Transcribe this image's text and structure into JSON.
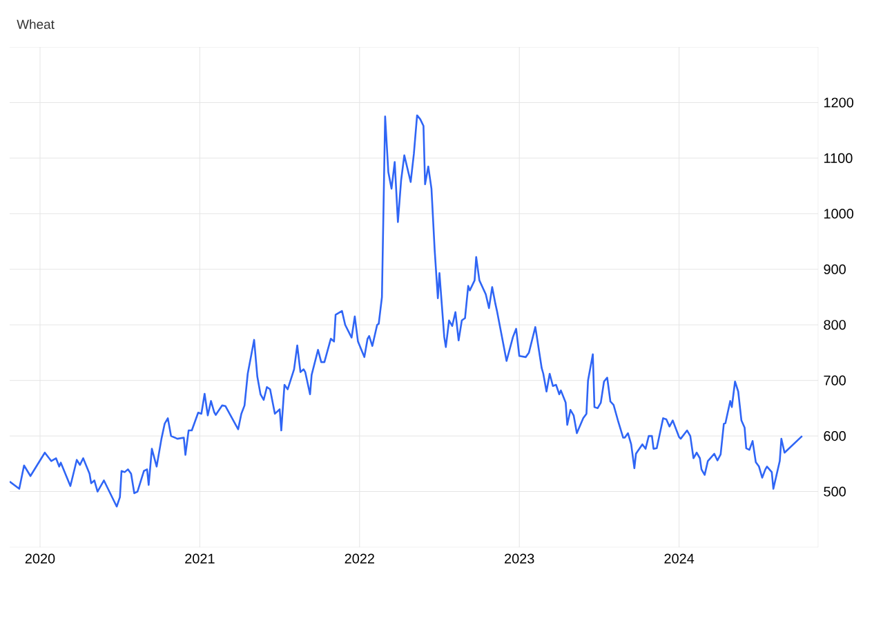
{
  "chart_data": {
    "type": "line",
    "title": "Wheat",
    "x": [
      2019.81,
      2019.87,
      2019.9,
      2019.94,
      2020.03,
      2020.07,
      2020.1,
      2020.12,
      2020.13,
      2020.19,
      2020.23,
      2020.25,
      2020.27,
      2020.31,
      2020.32,
      2020.34,
      2020.36,
      2020.4,
      2020.48,
      2020.5,
      2020.51,
      2020.53,
      2020.55,
      2020.57,
      2020.59,
      2020.61,
      2020.65,
      2020.67,
      2020.68,
      2020.7,
      2020.73,
      2020.76,
      2020.78,
      2020.8,
      2020.82,
      2020.86,
      2020.9,
      2020.91,
      2020.93,
      2020.95,
      2020.99,
      2021.01,
      2021.03,
      2021.05,
      2021.07,
      2021.09,
      2021.1,
      2021.14,
      2021.16,
      2021.24,
      2021.26,
      2021.28,
      2021.3,
      2021.34,
      2021.36,
      2021.38,
      2021.4,
      2021.42,
      2021.44,
      2021.47,
      2021.5,
      2021.51,
      2021.53,
      2021.55,
      2021.59,
      2021.61,
      2021.63,
      2021.65,
      2021.66,
      2021.69,
      2021.7,
      2021.74,
      2021.76,
      2021.78,
      2021.82,
      2021.84,
      2021.85,
      2021.89,
      2021.91,
      2021.95,
      2021.97,
      2021.99,
      2022.03,
      2022.05,
      2022.06,
      2022.08,
      2022.11,
      2022.12,
      2022.14,
      2022.16,
      2022.18,
      2022.2,
      2022.22,
      2022.24,
      2022.26,
      2022.28,
      2022.32,
      2022.34,
      2022.36,
      2022.38,
      2022.4,
      2022.41,
      2022.43,
      2022.45,
      2022.47,
      2022.49,
      2022.5,
      2022.53,
      2022.54,
      2022.56,
      2022.58,
      2022.6,
      2022.62,
      2022.64,
      2022.66,
      2022.68,
      2022.69,
      2022.72,
      2022.73,
      2022.75,
      2022.79,
      2022.81,
      2022.83,
      2022.85,
      2022.86,
      2022.9,
      2022.92,
      2022.96,
      2022.98,
      2023.0,
      2023.04,
      2023.06,
      2023.1,
      2023.11,
      2023.14,
      2023.15,
      2023.17,
      2023.19,
      2023.21,
      2023.23,
      2023.25,
      2023.26,
      2023.29,
      2023.3,
      2023.32,
      2023.34,
      2023.36,
      2023.4,
      2023.42,
      2023.43,
      2023.46,
      2023.47,
      2023.49,
      2023.51,
      2023.53,
      2023.55,
      2023.57,
      2023.59,
      2023.62,
      2023.65,
      2023.66,
      2023.68,
      2023.7,
      2023.72,
      2023.73,
      2023.77,
      2023.79,
      2023.81,
      2023.83,
      2023.84,
      2023.86,
      2023.9,
      2023.92,
      2023.94,
      2023.96,
      2024.0,
      2024.01,
      2024.05,
      2024.07,
      2024.09,
      2024.11,
      2024.13,
      2024.14,
      2024.16,
      2024.18,
      2024.22,
      2024.24,
      2024.26,
      2024.28,
      2024.29,
      2024.32,
      2024.33,
      2024.35,
      2024.37,
      2024.39,
      2024.41,
      2024.42,
      2024.44,
      2024.46,
      2024.48,
      2024.5,
      2024.52,
      2024.54,
      2024.55,
      2024.58,
      2024.59,
      2024.61,
      2024.63,
      2024.64,
      2024.66,
      2024.77
    ],
    "series": [
      {
        "color": "#2f65f5",
        "values": [
          518,
          505,
          547,
          528,
          570,
          555,
          560,
          545,
          552,
          510,
          557,
          548,
          560,
          532,
          515,
          520,
          500,
          520,
          473,
          490,
          537,
          535,
          540,
          532,
          497,
          500,
          537,
          540,
          512,
          577,
          545,
          595,
          622,
          632,
          600,
          595,
          597,
          566,
          610,
          610,
          642,
          640,
          676,
          637,
          663,
          643,
          638,
          655,
          654,
          612,
          640,
          655,
          712,
          773,
          707,
          675,
          665,
          688,
          684,
          640,
          648,
          610,
          692,
          684,
          720,
          763,
          715,
          720,
          715,
          675,
          710,
          755,
          733,
          733,
          775,
          770,
          818,
          825,
          800,
          777,
          815,
          770,
          742,
          775,
          780,
          762,
          800,
          802,
          850,
          1175,
          1075,
          1045,
          1093,
          985,
          1060,
          1105,
          1057,
          1108,
          1177,
          1170,
          1158,
          1053,
          1085,
          1045,
          935,
          848,
          893,
          778,
          760,
          808,
          798,
          823,
          772,
          808,
          812,
          870,
          862,
          880,
          922,
          880,
          855,
          830,
          868,
          838,
          825,
          765,
          735,
          778,
          793,
          744,
          742,
          750,
          796,
          778,
          722,
          712,
          680,
          712,
          690,
          692,
          675,
          682,
          660,
          620,
          647,
          637,
          605,
          632,
          640,
          700,
          747,
          652,
          650,
          660,
          698,
          705,
          662,
          656,
          625,
          597,
          597,
          605,
          585,
          542,
          568,
          585,
          577,
          600,
          600,
          577,
          578,
          632,
          630,
          617,
          628,
          598,
          595,
          610,
          600,
          560,
          570,
          560,
          540,
          530,
          555,
          568,
          556,
          567,
          622,
          623,
          663,
          652,
          698,
          680,
          628,
          615,
          578,
          575,
          591,
          553,
          545,
          525,
          540,
          545,
          535,
          505,
          530,
          555,
          595,
          570,
          600
        ]
      }
    ],
    "xlim": [
      2019.81,
      2024.87
    ],
    "ylim": [
      400,
      1300
    ],
    "xticks": [
      2020,
      2021,
      2022,
      2023,
      2024
    ],
    "yticks": [
      500,
      600,
      700,
      800,
      900,
      1000,
      1100,
      1200
    ],
    "grid": true,
    "marker": "none",
    "line_style": "solid"
  }
}
